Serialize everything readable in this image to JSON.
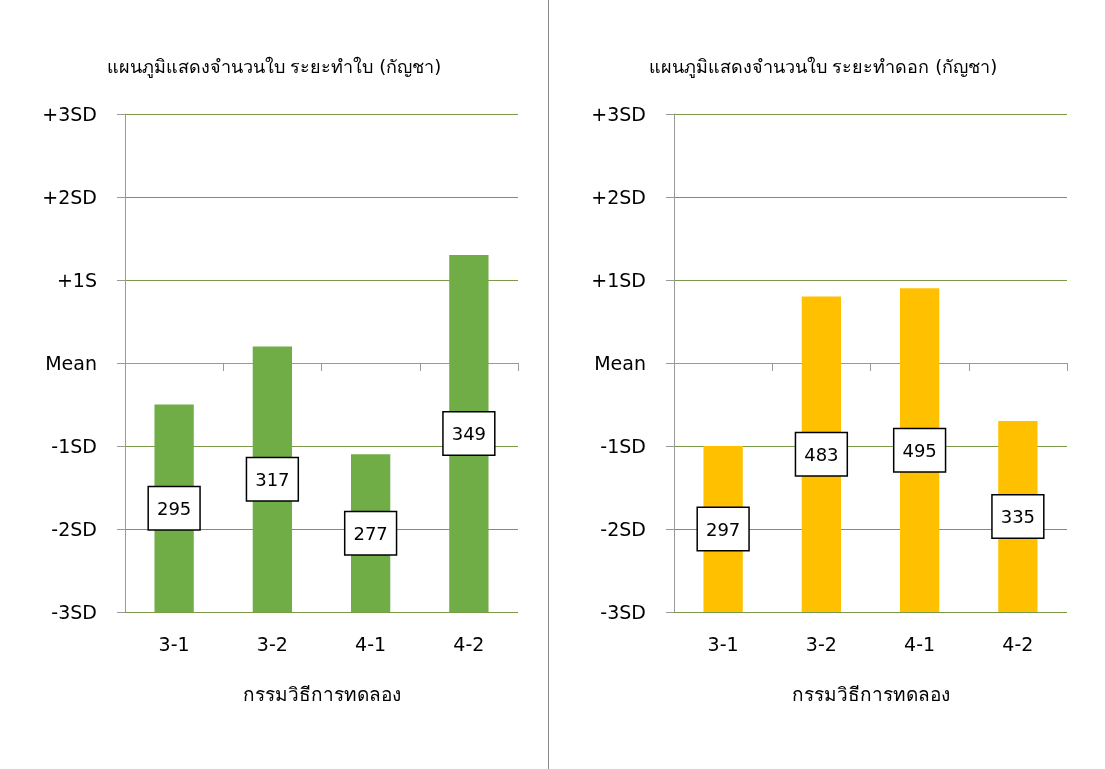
{
  "chart_data": [
    {
      "type": "bar",
      "title": "แผนภูมิแสดงจำนวนใบ ระยะทำใบ (กัญชา)",
      "xlabel": "กรรมวิธีการทดลอง",
      "categories": [
        "3-1",
        "3-2",
        "4-1",
        "4-2"
      ],
      "series": [
        {
          "color": "#70ad47",
          "base": [
            -3,
            -3,
            -3,
            -3
          ],
          "values": [
            2.5,
            3.2,
            1.9,
            4.3
          ]
        }
      ],
      "annotations": [
        "295",
        "317",
        "277",
        "349"
      ],
      "ylim": [
        -3,
        3
      ],
      "yticks": [
        {
          "value": -3,
          "label": "-3SD"
        },
        {
          "value": -2,
          "label": "-2SD"
        },
        {
          "value": -1,
          "label": "-1SD"
        },
        {
          "value": 0,
          "label": "Mean"
        },
        {
          "value": 1,
          "label": "+1S"
        },
        {
          "value": 2,
          "label": "+2SD"
        },
        {
          "value": 3,
          "label": "+3SD"
        }
      ],
      "grid": "y"
    },
    {
      "type": "bar",
      "title": "แผนภูมิแสดงจำนวนใบ ระยะทำดอก (กัญชา)",
      "xlabel": "กรรมวิธีการทดลอง",
      "categories": [
        "3-1",
        "3-2",
        "4-1",
        "4-2"
      ],
      "series": [
        {
          "color": "#ffc000",
          "base": [
            -3,
            -3,
            -3,
            -3
          ],
          "values": [
            2.0,
            3.8,
            3.9,
            2.3
          ]
        }
      ],
      "annotations": [
        "297",
        "483",
        "495",
        "335"
      ],
      "ylim": [
        -3,
        3
      ],
      "yticks": [
        {
          "value": -3,
          "label": "-3SD"
        },
        {
          "value": -2,
          "label": "-2SD"
        },
        {
          "value": -1,
          "label": "-1SD"
        },
        {
          "value": 0,
          "label": "Mean"
        },
        {
          "value": 1,
          "label": "+1SD"
        },
        {
          "value": 2,
          "label": "+2SD"
        },
        {
          "value": 3,
          "label": "+3SD"
        }
      ],
      "grid": "y"
    }
  ]
}
